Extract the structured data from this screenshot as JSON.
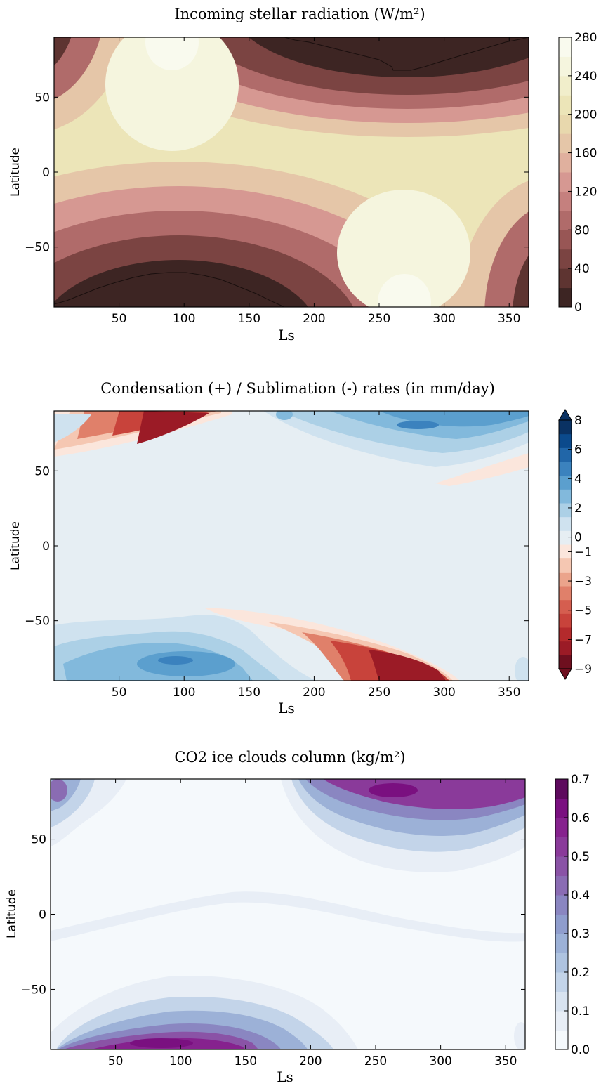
{
  "chart_data": [
    {
      "type": "heatmap",
      "title": "Incoming stellar radiation (W/m²)",
      "xlabel": "Ls",
      "ylabel": "Latitude",
      "xlim": [
        0,
        365
      ],
      "ylim": [
        -90,
        90
      ],
      "xticks": [
        "50",
        "100",
        "150",
        "200",
        "250",
        "300",
        "350"
      ],
      "yticks": [
        "50",
        "0",
        "−50"
      ],
      "colorbar": {
        "levels": [
          0,
          20,
          40,
          60,
          80,
          100,
          120,
          140,
          160,
          180,
          200,
          220,
          240,
          260,
          280
        ],
        "tick_labels": [
          "0",
          "40",
          "80",
          "120",
          "160",
          "200",
          "240",
          "280"
        ],
        "colors": [
          "#3d2523",
          "#5e3431",
          "#7b4442",
          "#985655",
          "#b06b6a",
          "#c5807e",
          "#d69892",
          "#e0b09e",
          "#e5c6a8",
          "#e8d8ad",
          "#ece5b8",
          "#f1eecb",
          "#f5f5de",
          "#f9faee"
        ]
      },
      "series": [
        {
          "values": [
            [
              95,
              280
            ]
          ]
        },
        {
          "values": [
            [
              275,
              280
            ]
          ]
        }
      ],
      "grid": false
    },
    {
      "type": "heatmap",
      "title": "Condensation (+) / Sublimation (-) rates (in mm/day)",
      "xlabel": "Ls",
      "ylabel": "Latitude",
      "xlim": [
        0,
        365
      ],
      "ylim": [
        -90,
        90
      ],
      "xticks": [
        "50",
        "100",
        "150",
        "200",
        "250",
        "300",
        "350"
      ],
      "yticks": [
        "50",
        "0",
        "−50"
      ],
      "colorbar": {
        "levels": [
          -9,
          -8,
          -7,
          -6,
          -5,
          -4,
          -3,
          -2,
          -1,
          0,
          1,
          2,
          3,
          4,
          5,
          6,
          7,
          8
        ],
        "tick_labels": [
          "8",
          "6",
          "4",
          "2",
          "0",
          "−1",
          "−3",
          "−5",
          "−7",
          "−9"
        ],
        "colors": [
          "#6e0f1f",
          "#9b1b26",
          "#b42a2c",
          "#c8433b",
          "#d55e4f",
          "#e0806a",
          "#eba48b",
          "#f5c7b2",
          "#fbe6dc",
          "#e6eef3",
          "#cfe2ef",
          "#acd0e6",
          "#82b9dc",
          "#5b9fce",
          "#3b82be",
          "#2166a8",
          "#0b4a8c",
          "#0a3263"
        ],
        "extend": "both"
      },
      "series": [
        {
          "values": [
            [
              90,
              80,
              -9
            ]
          ]
        },
        {
          "values": [
            [
              270,
              -80,
              -9
            ]
          ]
        },
        {
          "values": [
            [
              110,
              -80,
              4
            ]
          ]
        },
        {
          "values": [
            [
              270,
              80,
              4
            ]
          ]
        }
      ],
      "grid": false
    },
    {
      "type": "heatmap",
      "title": "CO2 ice clouds column (kg/m²)",
      "xlabel": "Ls",
      "ylabel": "Latitude",
      "xlim": [
        0,
        365
      ],
      "ylim": [
        -90,
        90
      ],
      "xticks": [
        "50",
        "100",
        "150",
        "200",
        "250",
        "300",
        "350"
      ],
      "yticks": [
        "50",
        "0",
        "−50"
      ],
      "colorbar": {
        "levels": [
          0.0,
          0.05,
          0.1,
          0.15,
          0.2,
          0.25,
          0.3,
          0.35,
          0.4,
          0.45,
          0.5,
          0.55,
          0.6,
          0.65,
          0.7
        ],
        "tick_labels": [
          "0.0",
          "0.1",
          "0.2",
          "0.3",
          "0.4",
          "0.5",
          "0.6",
          "0.7"
        ],
        "colors": [
          "#f5f9fc",
          "#e8eef6",
          "#d8e3f0",
          "#c3d4e9",
          "#aec3e0",
          "#9cb1d7",
          "#8f9dcd",
          "#8a86c1",
          "#8a6cb3",
          "#8a53a6",
          "#8a3a9a",
          "#86228e",
          "#7a1080",
          "#5e0a5e"
        ]
      },
      "series": [
        {
          "values": [
            [
              130,
              -80,
              0.6
            ]
          ]
        },
        {
          "values": [
            [
              300,
              75,
              0.6
            ]
          ]
        },
        {
          "values": [
            [
              10,
              80,
              0.35
            ]
          ]
        }
      ],
      "grid": false
    }
  ]
}
